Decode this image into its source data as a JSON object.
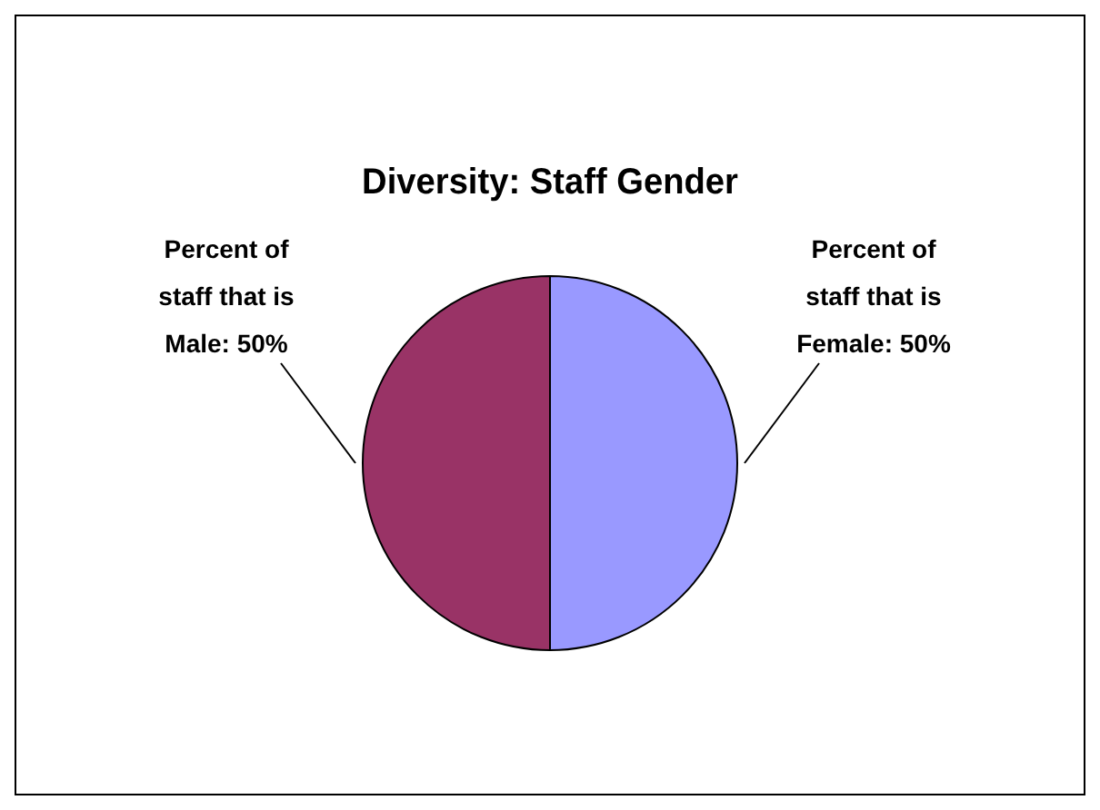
{
  "chart_data": {
    "type": "pie",
    "title": "Diversity: Staff Gender",
    "categories": [
      "Percent of staff that is Female",
      "Percent of staff that is Male"
    ],
    "values": [
      50,
      50
    ],
    "colors": [
      "#9999ff",
      "#993366"
    ],
    "value_labels": [
      "50%",
      "50%"
    ],
    "legend": false
  }
}
